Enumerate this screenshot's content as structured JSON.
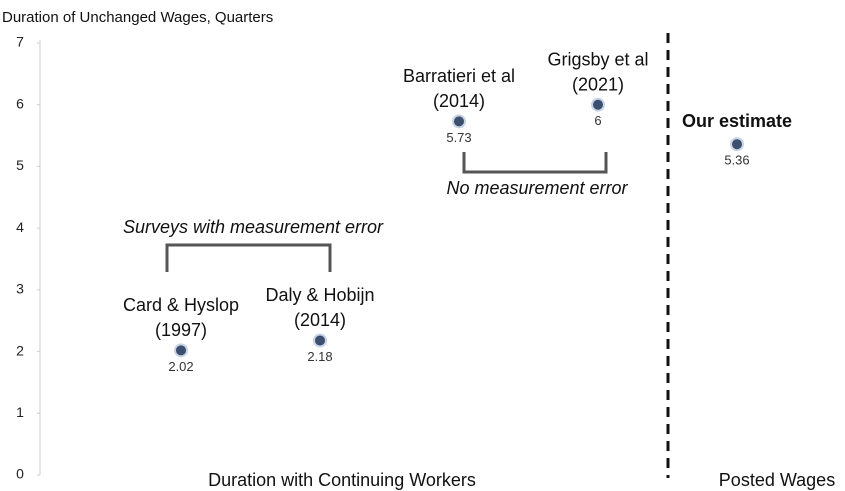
{
  "chart_data": {
    "type": "scatter",
    "y_label": "Duration of Unchanged Wages, Quarters",
    "categories": [
      [
        "Card & Hyslop",
        "(1997)"
      ],
      [
        "Daly & Hobijn",
        "(2014)"
      ],
      [
        "Barratieri et al",
        "(2014)"
      ],
      [
        "Grigsby et al",
        "(2021)"
      ],
      [
        "Our estimate"
      ]
    ],
    "values": [
      2.02,
      2.18,
      5.73,
      6,
      5.36
    ],
    "color": "#3d4f6e",
    "ylim": [
      0,
      7
    ],
    "yticks": [
      0,
      1,
      2,
      3,
      4,
      5,
      6,
      7
    ],
    "annotations": [
      "Surveys with measurement error",
      "No measurement error"
    ],
    "groups": [
      "Duration with Continuing Workers",
      "Posted Wages"
    ]
  }
}
